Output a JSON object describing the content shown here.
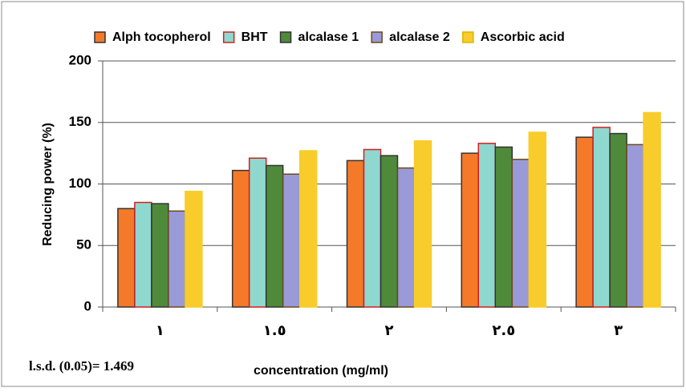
{
  "chart_data": {
    "type": "bar",
    "x_label": "concentration (mg/ml)",
    "y_label": "Reducing power (%)",
    "annotation": "l.s.d. (0.05)= 1.469",
    "categories": [
      "١",
      "١.٥",
      "٢",
      "٢.٥",
      "٣"
    ],
    "series": [
      {
        "name": "Alph tocopherol",
        "color": "#f47a2a",
        "edgecolor": "#333333",
        "values": [
          80,
          111,
          119,
          125,
          138
        ]
      },
      {
        "name": "BHT",
        "color": "#8fd8d0",
        "edgecolor": "#d21f1f",
        "values": [
          85,
          121,
          128,
          133,
          146
        ]
      },
      {
        "name": "alcalase 1",
        "color": "#4e8a3a",
        "edgecolor": "#333333",
        "values": [
          84,
          115,
          123,
          130,
          141
        ]
      },
      {
        "name": "alcalase 2",
        "color": "#9a9ad8",
        "edgecolor": "#6b4a1a",
        "values": [
          78,
          108,
          113,
          120,
          132
        ]
      },
      {
        "name": "Ascorbic acid",
        "color": "#f8cc2a",
        "edgecolor": "#f8cc2a",
        "values": [
          94,
          127,
          135,
          142,
          158
        ]
      }
    ],
    "ylim": [
      0,
      200
    ],
    "yticks": [
      0,
      50,
      100,
      150,
      200
    ],
    "grid": true,
    "legend": "top"
  }
}
